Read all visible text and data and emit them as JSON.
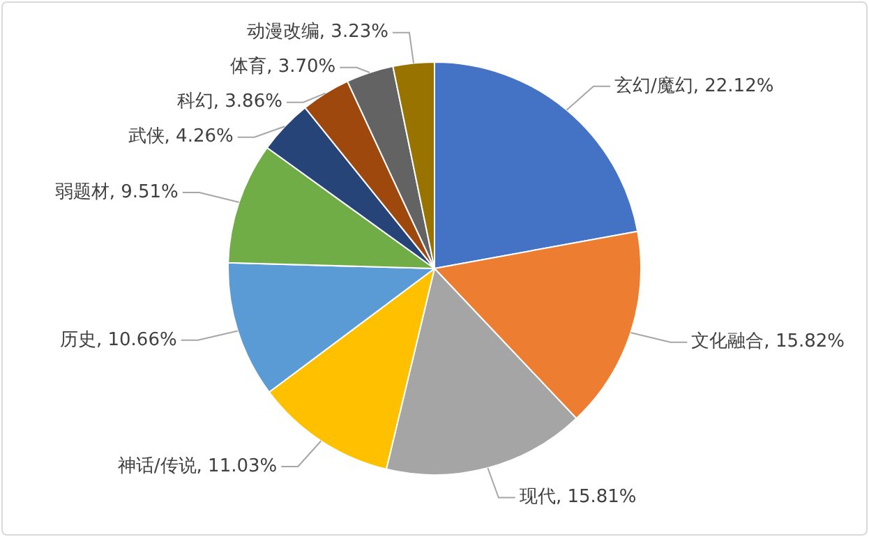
{
  "chart_data": {
    "type": "pie",
    "categories": [
      "玄幻/魔幻",
      "文化融合",
      "现代",
      "神话/传说",
      "历史",
      "弱题材",
      "武侠",
      "科幻",
      "体育",
      "动漫改编"
    ],
    "values": [
      22.12,
      15.82,
      15.81,
      11.03,
      10.66,
      9.51,
      4.26,
      3.86,
      3.7,
      3.23
    ],
    "value_labels": [
      "22.12%",
      "15.82%",
      "15.81%",
      "11.03%",
      "10.66%",
      "9.51%",
      "4.26%",
      "3.86%",
      "3.70%",
      "3.23%"
    ],
    "colors": [
      "#4472c4",
      "#ed7d31",
      "#a5a5a5",
      "#ffc000",
      "#5b9bd5",
      "#70ad47",
      "#264478",
      "#9e480e",
      "#636363",
      "#997300"
    ],
    "legend": false
  }
}
